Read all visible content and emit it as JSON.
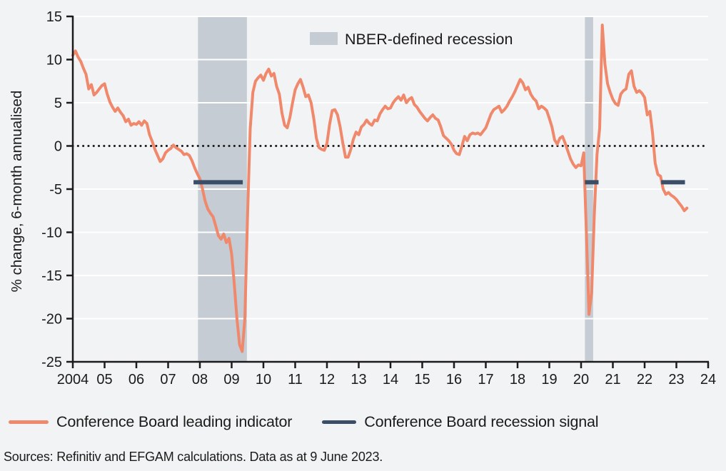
{
  "colors": {
    "background": "#F2F3F4",
    "line": "#F0886C",
    "signal": "#3A4E68",
    "band": "#C5CCD4",
    "grid": "#FFFFFF",
    "axis": "#1B1B1B",
    "text": "#1B1B1B"
  },
  "chart_data": {
    "type": "line",
    "title": "",
    "xlabel": "",
    "ylabel": "% change, 6-month annualised",
    "xlim": [
      2004,
      2024
    ],
    "ylim": [
      -25,
      15
    ],
    "grid": true,
    "zero_line": true,
    "x_ticks": [
      {
        "v": 2004,
        "label": "2004"
      },
      {
        "v": 2005,
        "label": "05"
      },
      {
        "v": 2006,
        "label": "06"
      },
      {
        "v": 2007,
        "label": "07"
      },
      {
        "v": 2008,
        "label": "08"
      },
      {
        "v": 2009,
        "label": "09"
      },
      {
        "v": 2010,
        "label": "10"
      },
      {
        "v": 2011,
        "label": "11"
      },
      {
        "v": 2012,
        "label": "12"
      },
      {
        "v": 2013,
        "label": "13"
      },
      {
        "v": 2014,
        "label": "14"
      },
      {
        "v": 2015,
        "label": "15"
      },
      {
        "v": 2016,
        "label": "16"
      },
      {
        "v": 2017,
        "label": "17"
      },
      {
        "v": 2018,
        "label": "18"
      },
      {
        "v": 2019,
        "label": "19"
      },
      {
        "v": 2020,
        "label": "20"
      },
      {
        "v": 2021,
        "label": "21"
      },
      {
        "v": 2022,
        "label": "22"
      },
      {
        "v": 2023,
        "label": "23"
      },
      {
        "v": 2024,
        "label": "24"
      }
    ],
    "y_ticks": [
      {
        "v": 15,
        "label": "15"
      },
      {
        "v": 10,
        "label": "10"
      },
      {
        "v": 5,
        "label": "5"
      },
      {
        "v": 0,
        "label": "0"
      },
      {
        "v": -5,
        "label": "-5"
      },
      {
        "v": -10,
        "label": "-10"
      },
      {
        "v": -15,
        "label": "-15"
      },
      {
        "v": -20,
        "label": "-20"
      },
      {
        "v": -25,
        "label": "-25"
      }
    ],
    "recession_bands": [
      {
        "start": 2007.94,
        "end": 2009.48
      },
      {
        "start": 2020.12,
        "end": 2020.38
      }
    ],
    "inner_legend": {
      "label": "NBER-defined recession"
    },
    "series": [
      {
        "name": "Conference Board leading indicator",
        "type": "line",
        "color_key": "line",
        "x_start": 2004.0,
        "x_step_months": 1,
        "values": [
          10.5,
          11.0,
          10.3,
          9.8,
          9.0,
          8.3,
          6.6,
          7.1,
          5.9,
          6.2,
          6.6,
          7.0,
          7.2,
          6.0,
          5.1,
          4.5,
          4.0,
          4.4,
          3.9,
          3.5,
          2.8,
          3.1,
          2.4,
          2.6,
          2.5,
          2.8,
          2.4,
          2.9,
          2.6,
          1.3,
          0.5,
          -0.4,
          -1.1,
          -1.8,
          -1.5,
          -0.8,
          -0.5,
          -0.3,
          0.1,
          -0.2,
          -0.4,
          -0.6,
          -1.0,
          -0.9,
          -1.1,
          -1.7,
          -2.5,
          -3.2,
          -3.8,
          -5.0,
          -6.4,
          -7.3,
          -7.8,
          -8.2,
          -9.3,
          -10.4,
          -10.8,
          -10.2,
          -11.2,
          -10.7,
          -12.5,
          -16.0,
          -20.0,
          -23.0,
          -23.8,
          -20.0,
          -8.0,
          2.0,
          6.2,
          7.5,
          7.9,
          8.2,
          7.6,
          8.4,
          8.9,
          8.1,
          8.4,
          6.9,
          6.0,
          3.8,
          2.4,
          2.1,
          3.3,
          5.0,
          6.5,
          7.2,
          7.7,
          6.8,
          5.7,
          5.9,
          5.0,
          3.2,
          0.9,
          -0.2,
          -0.4,
          -0.5,
          0.3,
          2.5,
          4.1,
          4.2,
          3.6,
          2.2,
          0.3,
          -1.3,
          -1.3,
          -0.4,
          0.8,
          1.6,
          1.3,
          2.2,
          2.5,
          3.0,
          2.6,
          2.4,
          3.0,
          2.9,
          3.7,
          4.2,
          4.6,
          4.3,
          4.4,
          5.0,
          5.4,
          5.7,
          5.3,
          5.9,
          5.0,
          5.4,
          5.6,
          4.8,
          4.5,
          4.0,
          3.6,
          3.2,
          2.9,
          3.3,
          3.6,
          3.2,
          3.0,
          2.2,
          1.2,
          0.9,
          0.6,
          0.2,
          -0.5,
          -0.9,
          -1.0,
          0.0,
          1.1,
          0.6,
          1.3,
          1.5,
          1.4,
          1.5,
          1.3,
          1.7,
          2.1,
          2.9,
          3.7,
          4.2,
          4.4,
          4.6,
          3.9,
          4.2,
          4.6,
          5.2,
          5.7,
          6.3,
          7.0,
          7.7,
          7.3,
          6.5,
          6.8,
          6.0,
          5.5,
          5.2,
          4.3,
          4.6,
          4.4,
          4.1,
          3.2,
          2.2,
          0.7,
          0.2,
          0.9,
          1.1,
          0.3,
          -0.6,
          -1.5,
          -2.1,
          -2.5,
          -2.2,
          -2.3,
          -0.8,
          -10.0,
          -19.5,
          -17.0,
          -8.0,
          -1.0,
          2.0,
          14.0,
          9.5,
          7.2,
          6.2,
          5.4,
          4.9,
          4.7,
          6.0,
          6.4,
          6.6,
          8.3,
          8.7,
          6.9,
          6.2,
          6.4,
          6.1,
          5.6,
          3.6,
          4.0,
          1.5,
          -2.0,
          -3.3,
          -3.5,
          -5.0,
          -5.6,
          -5.4,
          -5.7,
          -5.9,
          -6.2,
          -6.6,
          -7.0,
          -7.5,
          -7.2
        ]
      },
      {
        "name": "Conference Board recession signal",
        "type": "segments",
        "color_key": "signal",
        "segments": [
          {
            "start": 2007.8,
            "end": 2009.35,
            "value": -4.2
          },
          {
            "start": 2020.12,
            "end": 2020.55,
            "value": -4.2
          },
          {
            "start": 2022.52,
            "end": 2023.27,
            "value": -4.2
          }
        ]
      }
    ]
  },
  "legend": {
    "items": [
      {
        "label": "Conference Board leading indicator"
      },
      {
        "label": "Conference Board recession signal"
      }
    ]
  },
  "footer": {
    "sources": "Sources: Refinitiv and EFGAM calculations. Data as at 9 June 2023."
  }
}
